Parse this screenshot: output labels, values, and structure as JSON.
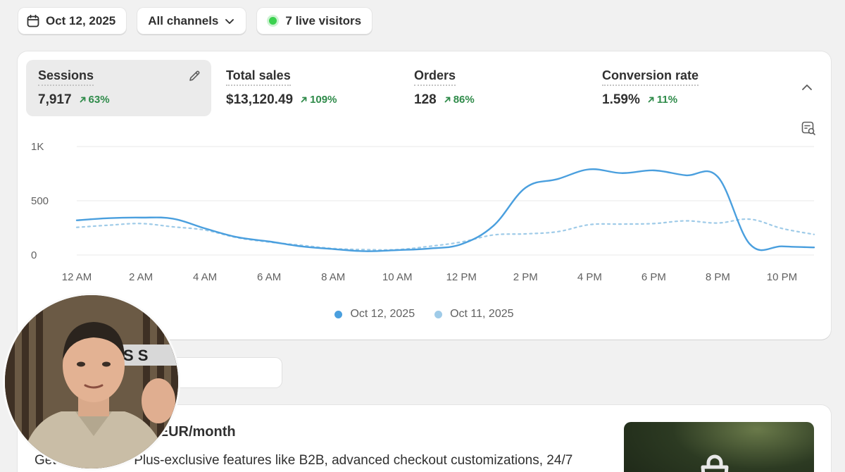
{
  "filters": {
    "date_label": "Oct 12, 2025",
    "channel_label": "All channels",
    "live_label": "7 live visitors"
  },
  "metrics": [
    {
      "label": "Sessions",
      "value": "7,917",
      "change": "63%"
    },
    {
      "label": "Total sales",
      "value": "$13,120.49",
      "change": "109%"
    },
    {
      "label": "Orders",
      "value": "128",
      "change": "86%"
    },
    {
      "label": "Conversion rate",
      "value": "1.59%",
      "change": "11%"
    }
  ],
  "chart_data": {
    "type": "line",
    "x": [
      "12 AM",
      "1 AM",
      "2 AM",
      "3 AM",
      "4 AM",
      "5 AM",
      "6 AM",
      "7 AM",
      "8 AM",
      "9 AM",
      "10 AM",
      "11 AM",
      "12 PM",
      "1 PM",
      "2 PM",
      "3 PM",
      "4 PM",
      "5 PM",
      "6 PM",
      "7 PM",
      "8 PM",
      "9 PM",
      "10 PM",
      "11 PM"
    ],
    "x_tick_labels": [
      "12 AM",
      "2 AM",
      "4 AM",
      "6 AM",
      "8 AM",
      "10 AM",
      "12 PM",
      "2 PM",
      "4 PM",
      "6 PM",
      "8 PM",
      "10 PM"
    ],
    "y_tick_labels": [
      "1K",
      "500",
      "0"
    ],
    "ylim": [
      0,
      1000
    ],
    "series": [
      {
        "name": "Oct 12, 2025",
        "style": "solid",
        "color": "#4a9fde",
        "values": [
          320,
          340,
          345,
          335,
          245,
          165,
          125,
          80,
          55,
          35,
          45,
          60,
          100,
          270,
          620,
          700,
          790,
          755,
          780,
          735,
          720,
          100,
          80,
          70
        ]
      },
      {
        "name": "Oct 11, 2025",
        "style": "dotted",
        "color": "#9fcbe8",
        "values": [
          255,
          275,
          290,
          260,
          230,
          160,
          120,
          90,
          60,
          50,
          50,
          80,
          120,
          185,
          195,
          215,
          280,
          285,
          290,
          315,
          295,
          330,
          245,
          190
        ]
      }
    ],
    "legend_position": "bottom-center",
    "grid": true
  },
  "promo": {
    "title": "al of Plus for €384 EUR/month",
    "description": "Plus-exclusive features like B2B, advanced checkout customizations, 24/7",
    "description_prefix": "Get"
  },
  "colors": {
    "accent_green": "#2f8b4a",
    "live_dot": "#3bd14f",
    "line_primary": "#4a9fde",
    "line_secondary": "#9fcbe8"
  }
}
